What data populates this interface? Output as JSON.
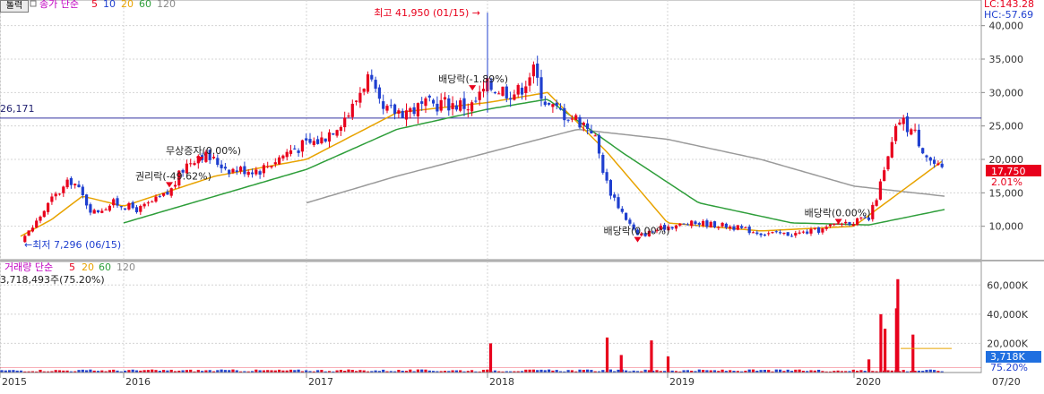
{
  "toolbar": {
    "print_button_label": "톨력"
  },
  "price_legend": {
    "main_label": "종가 단순",
    "periods": [
      "5",
      "10",
      "20",
      "60",
      "120"
    ],
    "period_colors": [
      "#e8001c",
      "#1f3fcf",
      "#e8a300",
      "#2e9e3a",
      "#8a8a8a"
    ]
  },
  "volume_legend": {
    "main_label": "거래량 단순",
    "periods": [
      "5",
      "20",
      "60",
      "120"
    ],
    "period_colors": [
      "#e8001c",
      "#e8a300",
      "#2e9e3a",
      "#8a8a8a"
    ],
    "current_volume_text": "3,718,493주(75.20%)"
  },
  "top_right": {
    "lc_text": "LC:143.28",
    "hc_text": "HC:-57.69"
  },
  "reference_line": {
    "label": "26,171",
    "value": 26171
  },
  "current_price": {
    "label": "17,750",
    "change_label": "2.01%",
    "value": 17750
  },
  "current_volume": {
    "label": "3,718K",
    "ratio_label": "75.20%",
    "value": 3718
  },
  "x_axis_labels": [
    "2015",
    "2016",
    "2017",
    "2018",
    "2019",
    "2020",
    "07/20"
  ],
  "colors": {
    "up": "#e8001c",
    "down": "#1f3fcf",
    "ref_line": "#3030a0",
    "ma5": "#e8001c",
    "ma10": "#1f3fcf",
    "ma20": "#e8a300",
    "ma60": "#2e9e3a",
    "ma120": "#9a9a9a",
    "price_box": "#e8001c",
    "volume_box": "#1f6fe0",
    "axis_blue": "#1c5fbf"
  },
  "chart_data": [
    {
      "type": "candlestick",
      "title": "",
      "y_axis_labels": [
        "40,000",
        "35,000",
        "30,000",
        "25,000",
        "20,000",
        "15,000",
        "10,000"
      ],
      "ylim": [
        5000,
        42500
      ],
      "grid": true,
      "close_keypoints": [
        {
          "t": "2014-12",
          "v": 8800
        },
        {
          "t": "2015-03",
          "v": 8000
        },
        {
          "t": "2015-04",
          "v": 9500
        },
        {
          "t": "2015-06",
          "v": 14000
        },
        {
          "t": "2015-08",
          "v": 17000
        },
        {
          "t": "2015-09",
          "v": 14500
        },
        {
          "t": "2015-10",
          "v": 12000
        },
        {
          "t": "2015-12",
          "v": 13500
        },
        {
          "t": "2016-02",
          "v": 12500
        },
        {
          "t": "2016-04",
          "v": 15000
        },
        {
          "t": "2016-05",
          "v": 19000
        },
        {
          "t": "2016-06",
          "v": 21000
        },
        {
          "t": "2016-08",
          "v": 18500
        },
        {
          "t": "2016-10",
          "v": 18500
        },
        {
          "t": "2016-12",
          "v": 21500
        },
        {
          "t": "2017-02",
          "v": 23000
        },
        {
          "t": "2017-04",
          "v": 27500
        },
        {
          "t": "2017-05",
          "v": 32500
        },
        {
          "t": "2017-06",
          "v": 27000
        },
        {
          "t": "2017-08",
          "v": 27500
        },
        {
          "t": "2017-10",
          "v": 28500
        },
        {
          "t": "2017-12",
          "v": 28000
        },
        {
          "t": "2018-01",
          "v": 31000
        },
        {
          "t": "2018-03",
          "v": 30000
        },
        {
          "t": "2018-04",
          "v": 33500
        },
        {
          "t": "2018-05",
          "v": 28000
        },
        {
          "t": "2018-07",
          "v": 26000
        },
        {
          "t": "2018-08",
          "v": 24500
        },
        {
          "t": "2018-09",
          "v": 16000
        },
        {
          "t": "2018-10",
          "v": 12000
        },
        {
          "t": "2018-11",
          "v": 8500
        },
        {
          "t": "2019-01",
          "v": 10000
        },
        {
          "t": "2019-03",
          "v": 10500
        },
        {
          "t": "2019-05",
          "v": 10000
        },
        {
          "t": "2019-07",
          "v": 9000
        },
        {
          "t": "2019-09",
          "v": 8800
        },
        {
          "t": "2019-11",
          "v": 9500
        },
        {
          "t": "2019-12",
          "v": 10500
        },
        {
          "t": "2020-02",
          "v": 11000
        },
        {
          "t": "2020-03",
          "v": 18000
        },
        {
          "t": "2020-04",
          "v": 26000
        },
        {
          "t": "2020-05",
          "v": 24000
        },
        {
          "t": "2020-06",
          "v": 20000
        },
        {
          "t": "2020-07",
          "v": 17750
        }
      ],
      "moving_averages": [
        {
          "period": "120",
          "points": [
            {
              "t": "2017-01",
              "v": 13500
            },
            {
              "t": "2017-07",
              "v": 17500
            },
            {
              "t": "2018-01",
              "v": 21000
            },
            {
              "t": "2018-07",
              "v": 24500
            },
            {
              "t": "2019-01",
              "v": 23000
            },
            {
              "t": "2019-07",
              "v": 20000
            },
            {
              "t": "2020-01",
              "v": 16000
            },
            {
              "t": "2020-07",
              "v": 14500
            }
          ]
        },
        {
          "period": "60",
          "points": [
            {
              "t": "2016-01",
              "v": 10500
            },
            {
              "t": "2016-07",
              "v": 14500
            },
            {
              "t": "2017-01",
              "v": 18500
            },
            {
              "t": "2017-07",
              "v": 24500
            },
            {
              "t": "2018-01",
              "v": 27500
            },
            {
              "t": "2018-05",
              "v": 29000
            },
            {
              "t": "2018-10",
              "v": 21000
            },
            {
              "t": "2019-03",
              "v": 13500
            },
            {
              "t": "2019-09",
              "v": 10500
            },
            {
              "t": "2020-02",
              "v": 10200
            },
            {
              "t": "2020-07",
              "v": 12500
            }
          ]
        },
        {
          "period": "20",
          "points": [
            {
              "t": "2015-03",
              "v": 8500
            },
            {
              "t": "2015-06",
              "v": 11000
            },
            {
              "t": "2015-09",
              "v": 14500
            },
            {
              "t": "2016-01",
              "v": 13000
            },
            {
              "t": "2016-07",
              "v": 17500
            },
            {
              "t": "2017-01",
              "v": 20000
            },
            {
              "t": "2017-07",
              "v": 27000
            },
            {
              "t": "2018-01",
              "v": 28500
            },
            {
              "t": "2018-05",
              "v": 30000
            },
            {
              "t": "2018-09",
              "v": 21000
            },
            {
              "t": "2019-01",
              "v": 10500
            },
            {
              "t": "2019-07",
              "v": 9300
            },
            {
              "t": "2020-01",
              "v": 10000
            },
            {
              "t": "2020-04",
              "v": 15000
            },
            {
              "t": "2020-07",
              "v": 20000
            }
          ]
        }
      ],
      "annotations": [
        {
          "text": "최고 41,950 (01/15)",
          "t": "2018-01",
          "v": 41950,
          "kind": "high"
        },
        {
          "text": "최저 7,296 (06/15)",
          "t": "2015-03",
          "v": 7296,
          "kind": "low"
        },
        {
          "text": "배당락(-1.89%)",
          "t": "2017-12",
          "v": 31500,
          "kind": "event"
        },
        {
          "text": "무상증자(0.00%)",
          "t": "2016-06",
          "v": 20800,
          "kind": "event"
        },
        {
          "text": "권리락(-49.62%)",
          "t": "2016-04",
          "v": 17000,
          "kind": "event"
        },
        {
          "text": "배당락(0.00%)",
          "t": "2018-11",
          "v": 8800,
          "kind": "event"
        },
        {
          "text": "배당락(0.00%)",
          "t": "2019-12",
          "v": 11500,
          "kind": "event"
        }
      ]
    },
    {
      "type": "bar",
      "title": "",
      "unit": "K",
      "y_axis_labels": [
        "60,000K",
        "40,000K",
        "20,000K"
      ],
      "ylim": [
        0,
        70000
      ],
      "spikes": [
        {
          "t": "2018-01",
          "v": 20000
        },
        {
          "t": "2018-09",
          "v": 24000
        },
        {
          "t": "2018-12",
          "v": 22000
        },
        {
          "t": "2018-10",
          "v": 12000
        },
        {
          "t": "2019-01",
          "v": 11000
        },
        {
          "t": "2020-03",
          "v": 40000
        },
        {
          "t": "2020-04",
          "v": 64000
        },
        {
          "t": "2020-04",
          "v": 44000
        },
        {
          "t": "2020-03",
          "v": 30000
        },
        {
          "t": "2020-05",
          "v": 26000
        },
        {
          "t": "2020-02",
          "v": 9000
        }
      ],
      "moving_averages": [
        {
          "period": "20",
          "level": 16500
        },
        {
          "period": "5",
          "level": 3500
        },
        {
          "period": "60",
          "level": 4500
        }
      ]
    }
  ]
}
